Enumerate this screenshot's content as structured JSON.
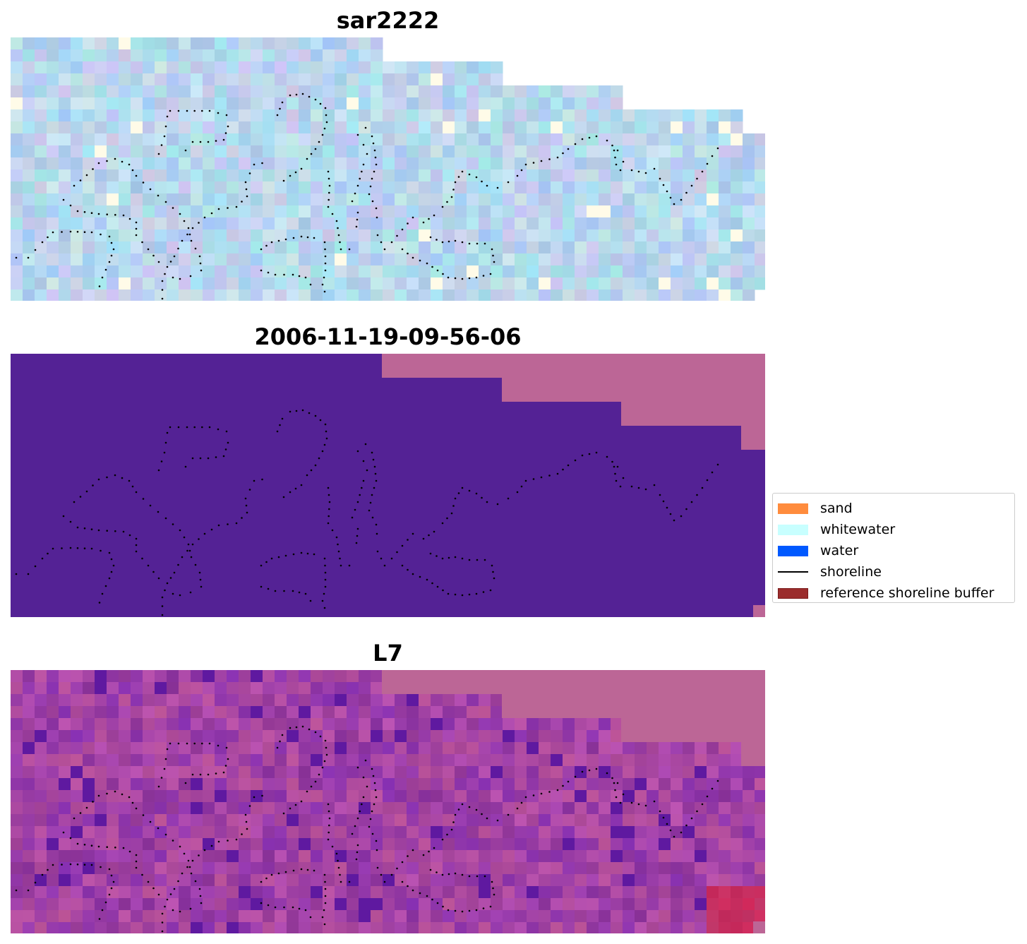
{
  "panels": [
    {
      "title": "sar2222",
      "kind": "sar"
    },
    {
      "title": "2006-11-19-09-56-06",
      "kind": "class"
    },
    {
      "title": "L7",
      "kind": "index"
    }
  ],
  "legend": {
    "items": [
      {
        "label": "sand",
        "color": "#ff8c3d",
        "type": "patch"
      },
      {
        "label": "whitewater",
        "color": "#c8ffff",
        "type": "patch"
      },
      {
        "label": "water",
        "color": "#0059ff",
        "type": "patch"
      },
      {
        "label": "shoreline",
        "color": "#000000",
        "type": "line"
      },
      {
        "label": "reference shoreline buffer",
        "color": "#9b2d2d",
        "type": "patch",
        "edge": "#7a1a1a"
      }
    ]
  },
  "colors": {
    "nodata": "#bc6696",
    "class_fill": "#542295",
    "shoreline": "#000000"
  }
}
